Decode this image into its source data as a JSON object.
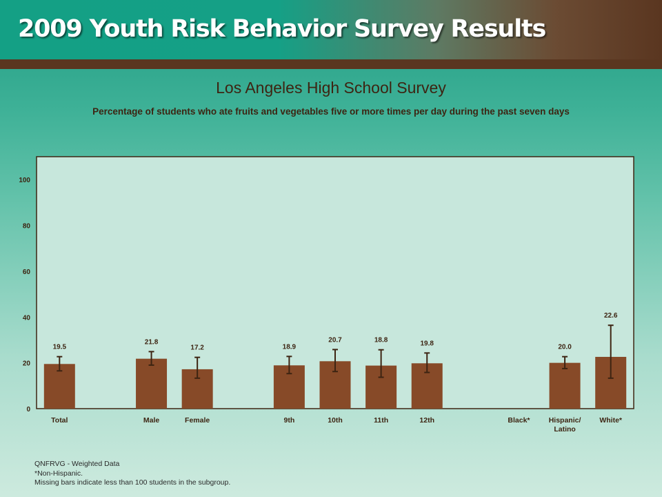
{
  "header": {
    "title": "2009 Youth Risk Behavior Survey Results"
  },
  "colors": {
    "bar": "#874a28",
    "error_bar": "#3d2412",
    "plot_background": "#c7e7dc",
    "header_green": "#15a086",
    "header_brown": "#5a3620"
  },
  "chart_data": {
    "type": "bar",
    "title": "Los Angeles High School Survey",
    "subtitle": "Percentage of students who ate fruits and vegetables five or more times per day during the past seven days",
    "xlabel": "",
    "ylabel": "",
    "ylim": [
      0,
      110
    ],
    "yticks": [
      "0",
      "20",
      "40",
      "60",
      "80",
      "100"
    ],
    "grid": false,
    "categories": [
      "Total",
      "Male",
      "Female",
      "9th",
      "10th",
      "11th",
      "12th",
      "Black*",
      "Hispanic/\nLatino",
      "White*"
    ],
    "values": [
      19.5,
      21.8,
      17.2,
      18.9,
      20.7,
      18.8,
      19.8,
      null,
      20.0,
      22.6
    ],
    "value_labels": [
      "19.5",
      "21.8",
      "17.2",
      "18.9",
      "20.7",
      "18.8",
      "19.8",
      "",
      "20.0",
      "22.6"
    ],
    "ci_lower": [
      16.5,
      19.0,
      13.3,
      15.3,
      16.2,
      13.7,
      15.8,
      null,
      17.5,
      13.3
    ],
    "ci_upper": [
      22.7,
      24.9,
      22.4,
      22.8,
      25.8,
      25.7,
      24.3,
      null,
      22.7,
      36.4
    ]
  },
  "footnotes": {
    "line1": "QNFRVG - Weighted Data",
    "line2": "*Non-Hispanic.",
    "line3": "Missing bars indicate less than 100 students in the subgroup."
  }
}
